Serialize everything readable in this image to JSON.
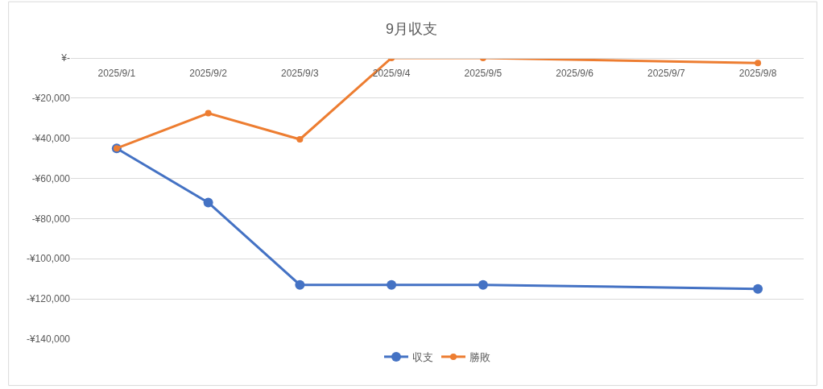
{
  "chart_data": {
    "type": "line",
    "title": "9月収支",
    "categories": [
      "2025/9/1",
      "2025/9/2",
      "2025/9/3",
      "2025/9/4",
      "2025/9/5",
      "2025/9/6",
      "2025/9/7",
      "2025/9/8"
    ],
    "series": [
      {
        "name": "収支",
        "color": "#4472c4",
        "values": [
          -45000,
          -72000,
          -113000,
          -113000,
          -113000,
          null,
          null,
          -115000
        ]
      },
      {
        "name": "勝敗",
        "color": "#ed7d31",
        "values": [
          -45000,
          -27500,
          -40500,
          0,
          0,
          null,
          null,
          -2500
        ]
      }
    ],
    "ylim": [
      -140000,
      0
    ],
    "yticks": [
      {
        "value": 0,
        "label": "¥-"
      },
      {
        "value": -20000,
        "label": "-¥20,000"
      },
      {
        "value": -40000,
        "label": "-¥40,000"
      },
      {
        "value": -60000,
        "label": "-¥60,000"
      },
      {
        "value": -80000,
        "label": "-¥80,000"
      },
      {
        "value": -100000,
        "label": "-¥100,000"
      },
      {
        "value": -120000,
        "label": "-¥120,000"
      },
      {
        "value": -140000,
        "label": "-¥140,000"
      }
    ],
    "grid": "y",
    "legend": "bottom",
    "marker": "circle",
    "line_style": "solid"
  }
}
